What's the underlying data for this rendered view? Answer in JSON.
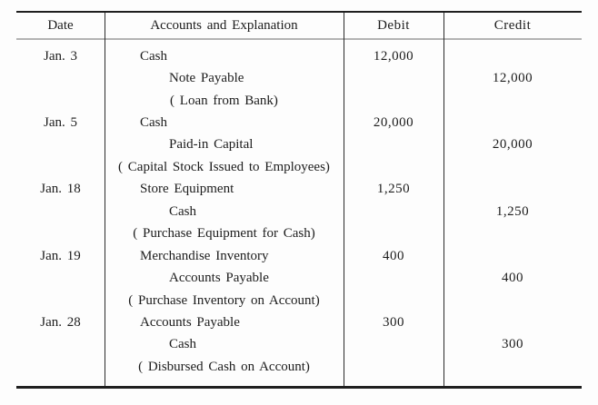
{
  "style": {
    "ink": "#1c1c1c",
    "rule_dark": "#1f1f1f",
    "rule_gray": "#b3b3b3",
    "background": "#fdfdfd"
  },
  "table": {
    "headers": {
      "date": "Date",
      "accounts": "Accounts and Explanation",
      "debit": "Debit",
      "credit": "Credit"
    },
    "rows": [
      {
        "date": "Jan. 3",
        "account": "Cash",
        "type": "debit",
        "debit": "12,000",
        "credit": ""
      },
      {
        "date": "",
        "account": "Note Payable",
        "type": "credit",
        "debit": "",
        "credit": "12,000"
      },
      {
        "date": "",
        "account": "( Loan from Bank)",
        "type": "explanation",
        "debit": "",
        "credit": ""
      },
      {
        "date": "Jan. 5",
        "account": "Cash",
        "type": "debit",
        "debit": "20,000",
        "credit": ""
      },
      {
        "date": "",
        "account": "Paid-in Capital",
        "type": "credit",
        "debit": "",
        "credit": "20,000"
      },
      {
        "date": "",
        "account": "( Capital Stock Issued to Employees)",
        "type": "explanation",
        "debit": "",
        "credit": ""
      },
      {
        "date": "Jan. 18",
        "account": "Store Equipment",
        "type": "debit",
        "debit": "1,250",
        "credit": ""
      },
      {
        "date": "",
        "account": "Cash",
        "type": "credit",
        "debit": "",
        "credit": "1,250"
      },
      {
        "date": "",
        "account": "( Purchase Equipment for Cash)",
        "type": "explanation",
        "debit": "",
        "credit": ""
      },
      {
        "date": "Jan. 19",
        "account": "Merchandise Inventory",
        "type": "debit",
        "debit": "400",
        "credit": ""
      },
      {
        "date": "",
        "account": "Accounts Payable",
        "type": "credit",
        "debit": "",
        "credit": "400"
      },
      {
        "date": "",
        "account": "( Purchase Inventory on Account)",
        "type": "explanation",
        "debit": "",
        "credit": ""
      },
      {
        "date": "Jan. 28",
        "account": "Accounts Payable",
        "type": "debit",
        "debit": "300",
        "credit": ""
      },
      {
        "date": "",
        "account": "Cash",
        "type": "credit",
        "debit": "",
        "credit": "300"
      },
      {
        "date": "",
        "account": "( Disbursed Cash on Account)",
        "type": "explanation",
        "debit": "",
        "credit": ""
      }
    ]
  }
}
